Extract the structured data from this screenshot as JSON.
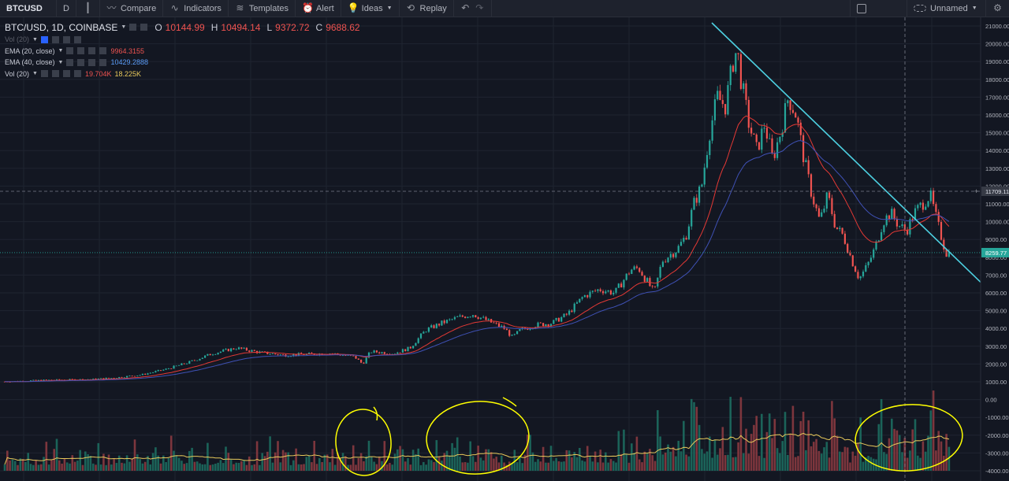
{
  "toolbar": {
    "symbol": "BTCUSD",
    "interval": "D",
    "compare": "Compare",
    "indicators": "Indicators",
    "templates": "Templates",
    "alert": "Alert",
    "ideas": "Ideas",
    "replay": "Replay",
    "layout_name": "Unnamed"
  },
  "legend": {
    "title": "BTC/USD, 1D, COINBASE",
    "o_label": "O",
    "o": "10144.99",
    "h_label": "H",
    "h": "10494.14",
    "l_label": "L",
    "l": "9372.72",
    "c_label": "C",
    "c": "9688.62",
    "vol_collapsed": "Vol (20)",
    "ema20_label": "EMA (20, close)",
    "ema20_value": "9964.3155",
    "ema40_label": "EMA (40, close)",
    "ema40_value": "10429.2888",
    "vol_label": "Vol (20)",
    "vol_value": "19.704K",
    "vol_ma_value": "18.225K"
  },
  "price_axis": {
    "ticks": [
      "21000.00",
      "20000.00",
      "19000.00",
      "18000.00",
      "17000.00",
      "16000.00",
      "15000.00",
      "14000.00",
      "13000.00",
      "12000.00",
      "11000.00",
      "10000.00",
      "9000.00",
      "8000.00",
      "7000.00",
      "6000.00",
      "5000.00",
      "4000.00",
      "3000.00",
      "2000.00",
      "1000.00",
      "0.00",
      "-1000.00",
      "-2000.00",
      "-3000.00",
      "-4000.00"
    ],
    "crosshair_label": "11709.11",
    "last_price_label": "8259.77"
  },
  "colors": {
    "background": "#131722",
    "up": "#26a69a",
    "down": "#ef5350",
    "ema20": "#e53935",
    "ema40": "#3f51b5",
    "vol_ma": "#e8c95b",
    "trendline": "#4dd0e1",
    "annotation": "#ffff00"
  },
  "chart_data": {
    "type": "candlestick",
    "title": "BTC/USD, 1D, COINBASE",
    "ylim": [
      -4000,
      21000
    ],
    "close_series": [
      [
        0,
        1000
      ],
      [
        30,
        1050
      ],
      [
        60,
        1100
      ],
      [
        90,
        1120
      ],
      [
        120,
        1150
      ],
      [
        150,
        1250
      ],
      [
        180,
        1400
      ],
      [
        210,
        1700
      ],
      [
        240,
        2100
      ],
      [
        270,
        2600
      ],
      [
        300,
        2900
      ],
      [
        330,
        2650
      ],
      [
        360,
        2500
      ],
      [
        390,
        2550
      ],
      [
        420,
        2600
      ],
      [
        450,
        2400
      ],
      [
        460,
        2000
      ],
      [
        470,
        2700
      ],
      [
        500,
        2600
      ],
      [
        520,
        2900
      ],
      [
        540,
        3900
      ],
      [
        560,
        4300
      ],
      [
        580,
        4600
      ],
      [
        600,
        4800
      ],
      [
        620,
        4400
      ],
      [
        640,
        4000
      ],
      [
        650,
        3500
      ],
      [
        660,
        3900
      ],
      [
        680,
        4200
      ],
      [
        700,
        4300
      ],
      [
        720,
        4800
      ],
      [
        740,
        5800
      ],
      [
        760,
        6200
      ],
      [
        780,
        6000
      ],
      [
        800,
        7300
      ],
      [
        810,
        7400
      ],
      [
        820,
        6700
      ],
      [
        830,
        6000
      ],
      [
        840,
        7800
      ],
      [
        860,
        8500
      ],
      [
        870,
        9200
      ],
      [
        880,
        11000
      ],
      [
        890,
        12000
      ],
      [
        900,
        15000
      ],
      [
        910,
        17000
      ],
      [
        920,
        16500
      ],
      [
        930,
        19000
      ],
      [
        935,
        19700
      ],
      [
        940,
        18000
      ],
      [
        950,
        15500
      ],
      [
        960,
        14000
      ],
      [
        970,
        15500
      ],
      [
        980,
        13500
      ],
      [
        990,
        15000
      ],
      [
        1000,
        17000
      ],
      [
        1010,
        16000
      ],
      [
        1020,
        13500
      ],
      [
        1030,
        11500
      ],
      [
        1040,
        10000
      ],
      [
        1050,
        11500
      ],
      [
        1060,
        9700
      ],
      [
        1070,
        9200
      ],
      [
        1080,
        7900
      ],
      [
        1090,
        6800
      ],
      [
        1100,
        7500
      ],
      [
        1110,
        8500
      ],
      [
        1120,
        10000
      ],
      [
        1130,
        10500
      ],
      [
        1140,
        9800
      ],
      [
        1150,
        9500
      ],
      [
        1160,
        10500
      ],
      [
        1170,
        11000
      ],
      [
        1180,
        11500
      ],
      [
        1190,
        9800
      ],
      [
        1200,
        8259.77
      ]
    ],
    "ema20": "computed",
    "ema40": "computed",
    "last_price": 8259.77,
    "crosshair_price": 11709.11
  }
}
